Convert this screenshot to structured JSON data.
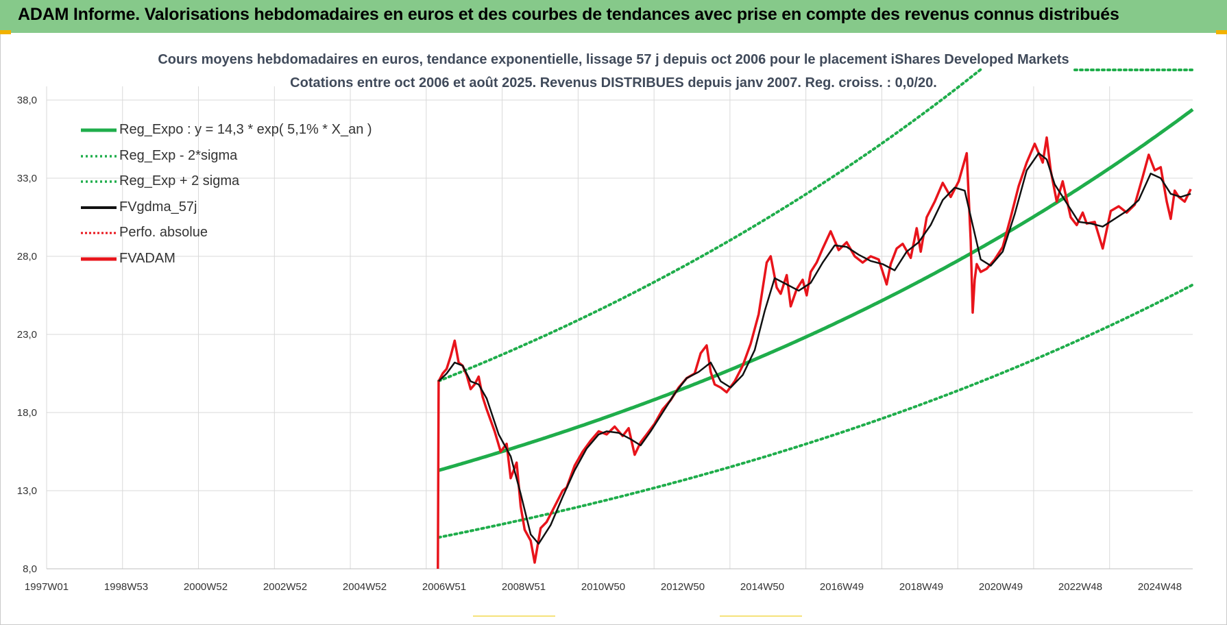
{
  "header": {
    "title": "ADAM Informe. Valorisations hebdomadaires en euros et des courbes de tendances avec prise en compte des revenus connus distribués"
  },
  "colors": {
    "banner": "#86c98a",
    "reg_expo": "#1fad4b",
    "price": "#e8141b",
    "ma": "#111111",
    "grid": "#d9d9d9"
  },
  "chart_data": {
    "type": "line",
    "title": "Cours moyens hebdomadaires en euros, tendance exponentielle, lissage 57 j depuis oct 2006 pour le placement iShares Developed Markets",
    "subtitle": "Cotations entre oct 2006 et août 2025. Revenus DISTRIBUES depuis janv 2007. Reg. croiss. : 0,0/20.",
    "xlabel": "",
    "ylabel": "",
    "ylim": [
      8.0,
      38.0
    ],
    "y_ticks": [
      "38,0",
      "33,0",
      "28,0",
      "23,0",
      "18,0",
      "13,0",
      "8,0"
    ],
    "x_ticks": [
      "1997W01",
      "1998W53",
      "2000W52",
      "2002W52",
      "2004W52",
      "2006W51",
      "2008W51",
      "2010W50",
      "2012W50",
      "2014W50",
      "2016W49",
      "2018W49",
      "2020W49",
      "2022W48",
      "2024W48"
    ],
    "xlim": [
      1997.0,
      2025.65
    ],
    "grid": true,
    "legend_position": "top-left",
    "legend": [
      {
        "label": "Reg_Expo : y = 14,3 * exp( 5,1% *  X_an )",
        "style": "solid",
        "color": "#1fad4b"
      },
      {
        "label": "Reg_Exp - 2*sigma",
        "style": "dotted",
        "color": "#1fad4b"
      },
      {
        "label": "Reg_Exp + 2 sigma",
        "style": "dotted",
        "color": "#1fad4b"
      },
      {
        "label": "FVgdma_57j",
        "style": "solid",
        "color": "#111111"
      },
      {
        "label": "Perfo. absolue",
        "style": "dotted",
        "color": "#e8141b"
      },
      {
        "label": "FVADAM",
        "style": "solid",
        "color": "#e8141b"
      }
    ],
    "regression": {
      "a": 14.3,
      "rate": 0.051,
      "x0": 2006.8,
      "x_end": 2025.65,
      "lower_factor": 0.7,
      "upper_factor": 1.4,
      "upper_cap": 40.0
    },
    "series": [
      {
        "key": "fvadam",
        "x": [
          2006.78,
          2006.8,
          2006.9,
          2007.0,
          2007.1,
          2007.2,
          2007.3,
          2007.4,
          2007.5,
          2007.6,
          2007.7,
          2007.8,
          2007.9,
          2008.0,
          2008.2,
          2008.35,
          2008.5,
          2008.6,
          2008.75,
          2008.85,
          2008.95,
          2009.1,
          2009.2,
          2009.35,
          2009.5,
          2009.7,
          2009.9,
          2010.0,
          2010.2,
          2010.4,
          2010.6,
          2010.8,
          2011.0,
          2011.2,
          2011.4,
          2011.55,
          2011.7,
          2011.85,
          2012.0,
          2012.2,
          2012.4,
          2012.6,
          2012.8,
          2013.0,
          2013.2,
          2013.35,
          2013.5,
          2013.6,
          2013.7,
          2013.85,
          2014.0,
          2014.2,
          2014.4,
          2014.6,
          2014.8,
          2015.0,
          2015.1,
          2015.25,
          2015.35,
          2015.5,
          2015.6,
          2015.75,
          2015.9,
          2016.0,
          2016.1,
          2016.25,
          2016.4,
          2016.6,
          2016.8,
          2017.0,
          2017.2,
          2017.4,
          2017.6,
          2017.8,
          2018.0,
          2018.1,
          2018.25,
          2018.4,
          2018.6,
          2018.75,
          2018.85,
          2019.0,
          2019.2,
          2019.4,
          2019.6,
          2019.8,
          2020.0,
          2020.1,
          2020.15,
          2020.2,
          2020.25,
          2020.35,
          2020.5,
          2020.7,
          2020.9,
          2021.1,
          2021.3,
          2021.5,
          2021.7,
          2021.9,
          2022.0,
          2022.1,
          2022.25,
          2022.4,
          2022.6,
          2022.75,
          2022.9,
          2023.0,
          2023.2,
          2023.4,
          2023.6,
          2023.8,
          2024.0,
          2024.2,
          2024.4,
          2024.55,
          2024.7,
          2024.85,
          2025.0,
          2025.1,
          2025.2,
          2025.3,
          2025.45,
          2025.6
        ],
        "y": [
          8.0,
          20.0,
          20.5,
          20.8,
          21.6,
          22.6,
          21.2,
          21.0,
          20.4,
          19.5,
          19.8,
          20.3,
          19.0,
          18.2,
          16.8,
          15.5,
          16.0,
          13.8,
          14.8,
          12.0,
          10.5,
          9.8,
          8.4,
          10.6,
          11.0,
          12.0,
          13.0,
          13.2,
          14.6,
          15.5,
          16.2,
          16.8,
          16.6,
          17.1,
          16.5,
          17.0,
          15.3,
          16.1,
          16.6,
          17.3,
          18.2,
          18.8,
          19.6,
          20.2,
          20.5,
          21.8,
          22.3,
          20.6,
          19.8,
          19.6,
          19.3,
          20.0,
          21.0,
          22.4,
          24.3,
          27.6,
          28.0,
          26.0,
          25.6,
          26.8,
          24.8,
          25.9,
          26.5,
          25.5,
          27.0,
          27.6,
          28.5,
          29.6,
          28.4,
          28.9,
          28.0,
          27.6,
          28.0,
          27.8,
          26.2,
          27.5,
          28.5,
          28.8,
          27.9,
          29.8,
          28.3,
          30.5,
          31.5,
          32.7,
          31.8,
          32.8,
          34.6,
          29.0,
          24.4,
          26.5,
          27.5,
          27.0,
          27.2,
          27.8,
          28.6,
          30.5,
          32.5,
          34.0,
          35.2,
          34.0,
          35.6,
          33.5,
          31.5,
          32.8,
          30.5,
          30.0,
          30.8,
          30.1,
          30.2,
          28.5,
          30.9,
          31.2,
          30.8,
          31.3,
          33.1,
          34.5,
          33.5,
          33.7,
          31.5,
          30.4,
          32.2,
          31.8,
          31.5,
          32.3
        ]
      },
      {
        "key": "fvgdma_57j",
        "x": [
          2006.8,
          2007.0,
          2007.2,
          2007.4,
          2007.6,
          2007.8,
          2008.0,
          2008.3,
          2008.6,
          2008.85,
          2009.1,
          2009.3,
          2009.6,
          2009.9,
          2010.2,
          2010.5,
          2010.8,
          2011.0,
          2011.3,
          2011.6,
          2011.85,
          2012.1,
          2012.4,
          2012.7,
          2013.0,
          2013.3,
          2013.6,
          2013.85,
          2014.1,
          2014.4,
          2014.7,
          2014.95,
          2015.2,
          2015.5,
          2015.8,
          2016.1,
          2016.4,
          2016.7,
          2017.0,
          2017.3,
          2017.6,
          2017.9,
          2018.2,
          2018.5,
          2018.8,
          2019.1,
          2019.4,
          2019.7,
          2019.95,
          2020.15,
          2020.35,
          2020.6,
          2020.9,
          2021.2,
          2021.5,
          2021.8,
          2022.0,
          2022.2,
          2022.5,
          2022.8,
          2023.1,
          2023.4,
          2023.7,
          2024.0,
          2024.3,
          2024.6,
          2024.85,
          2025.1,
          2025.35,
          2025.6
        ],
        "y": [
          20.0,
          20.5,
          21.2,
          21.0,
          20.0,
          19.8,
          18.9,
          16.6,
          15.2,
          12.8,
          10.2,
          9.6,
          10.8,
          12.6,
          14.3,
          15.7,
          16.6,
          16.8,
          16.7,
          16.3,
          15.9,
          16.8,
          18.0,
          19.2,
          20.2,
          20.6,
          21.2,
          20.0,
          19.6,
          20.4,
          22.0,
          24.5,
          26.6,
          26.2,
          25.8,
          26.3,
          27.6,
          28.7,
          28.6,
          28.1,
          27.7,
          27.5,
          27.1,
          28.3,
          28.9,
          30.0,
          31.6,
          32.4,
          32.2,
          30.0,
          27.8,
          27.4,
          28.3,
          30.7,
          33.5,
          34.6,
          34.2,
          32.6,
          31.4,
          30.2,
          30.1,
          29.9,
          30.4,
          30.9,
          31.6,
          33.3,
          33.0,
          32.0,
          31.8,
          32.0
        ]
      }
    ]
  }
}
